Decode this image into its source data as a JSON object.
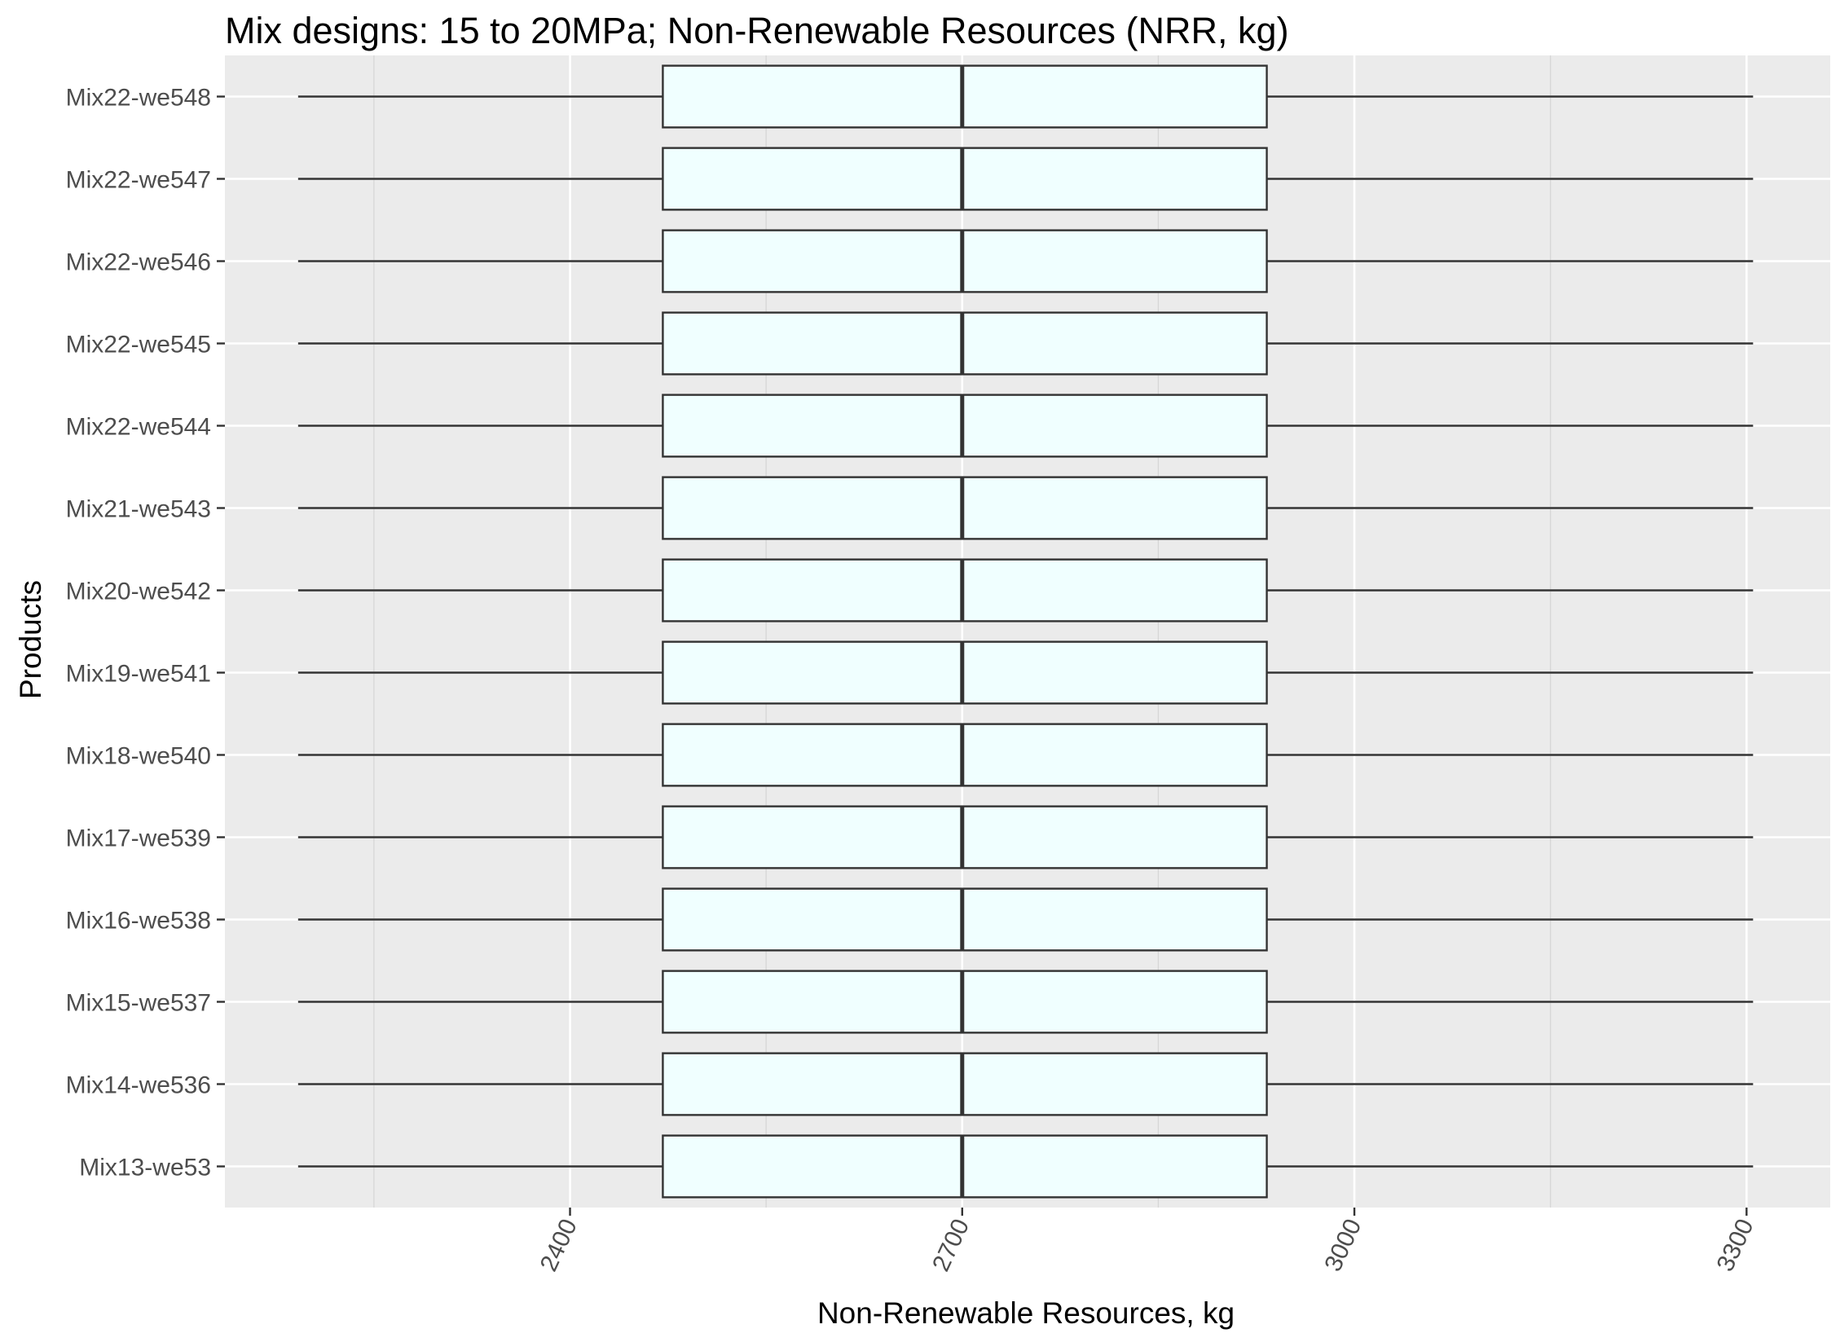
{
  "chart_data": {
    "type": "boxplot",
    "orientation": "horizontal",
    "title": "Mix designs: 15 to 20MPa; Non-Renewable Resources (NRR, kg)",
    "xlabel": "Non-Renewable Resources, kg",
    "ylabel": "Products",
    "xlim": [
      2136,
      3364
    ],
    "x_ticks": [
      2400,
      2700,
      3000,
      3300
    ],
    "x_tick_labels": [
      "2400",
      "2700",
      "3000",
      "3300"
    ],
    "categories": [
      "Mix13-we53",
      "Mix14-we536",
      "Mix15-we537",
      "Mix16-we538",
      "Mix17-we539",
      "Mix18-we540",
      "Mix19-we541",
      "Mix20-we542",
      "Mix21-we543",
      "Mix22-we544",
      "Mix22-we545",
      "Mix22-we546",
      "Mix22-we547",
      "Mix22-we548"
    ],
    "series": [
      {
        "category": "Mix13-we53",
        "min": 2192,
        "q1": 2471,
        "median": 2700,
        "q3": 2933,
        "max": 3305
      },
      {
        "category": "Mix14-we536",
        "min": 2192,
        "q1": 2471,
        "median": 2700,
        "q3": 2933,
        "max": 3305
      },
      {
        "category": "Mix15-we537",
        "min": 2192,
        "q1": 2471,
        "median": 2700,
        "q3": 2933,
        "max": 3305
      },
      {
        "category": "Mix16-we538",
        "min": 2192,
        "q1": 2471,
        "median": 2700,
        "q3": 2933,
        "max": 3305
      },
      {
        "category": "Mix17-we539",
        "min": 2192,
        "q1": 2471,
        "median": 2700,
        "q3": 2933,
        "max": 3305
      },
      {
        "category": "Mix18-we540",
        "min": 2192,
        "q1": 2471,
        "median": 2700,
        "q3": 2933,
        "max": 3305
      },
      {
        "category": "Mix19-we541",
        "min": 2192,
        "q1": 2471,
        "median": 2700,
        "q3": 2933,
        "max": 3305
      },
      {
        "category": "Mix20-we542",
        "min": 2192,
        "q1": 2471,
        "median": 2700,
        "q3": 2933,
        "max": 3305
      },
      {
        "category": "Mix21-we543",
        "min": 2192,
        "q1": 2471,
        "median": 2700,
        "q3": 2933,
        "max": 3305
      },
      {
        "category": "Mix22-we544",
        "min": 2192,
        "q1": 2471,
        "median": 2700,
        "q3": 2933,
        "max": 3305
      },
      {
        "category": "Mix22-we545",
        "min": 2192,
        "q1": 2471,
        "median": 2700,
        "q3": 2933,
        "max": 3305
      },
      {
        "category": "Mix22-we546",
        "min": 2192,
        "q1": 2471,
        "median": 2700,
        "q3": 2933,
        "max": 3305
      },
      {
        "category": "Mix22-we547",
        "min": 2192,
        "q1": 2471,
        "median": 2700,
        "q3": 2933,
        "max": 3305
      },
      {
        "category": "Mix22-we548",
        "min": 2192,
        "q1": 2471,
        "median": 2700,
        "q3": 2933,
        "max": 3305
      }
    ],
    "grid": true,
    "legend": "none",
    "colors": {
      "panel_background": "#ebebeb",
      "grid_major": "#ffffff",
      "grid_minor": "#d6d6d6",
      "box_fill": "#f0ffff",
      "box_stroke": "#333333",
      "whisker": "#333333",
      "median": "#333333",
      "tick_label": "#4d4d4d",
      "axis_tick": "#333333"
    }
  }
}
